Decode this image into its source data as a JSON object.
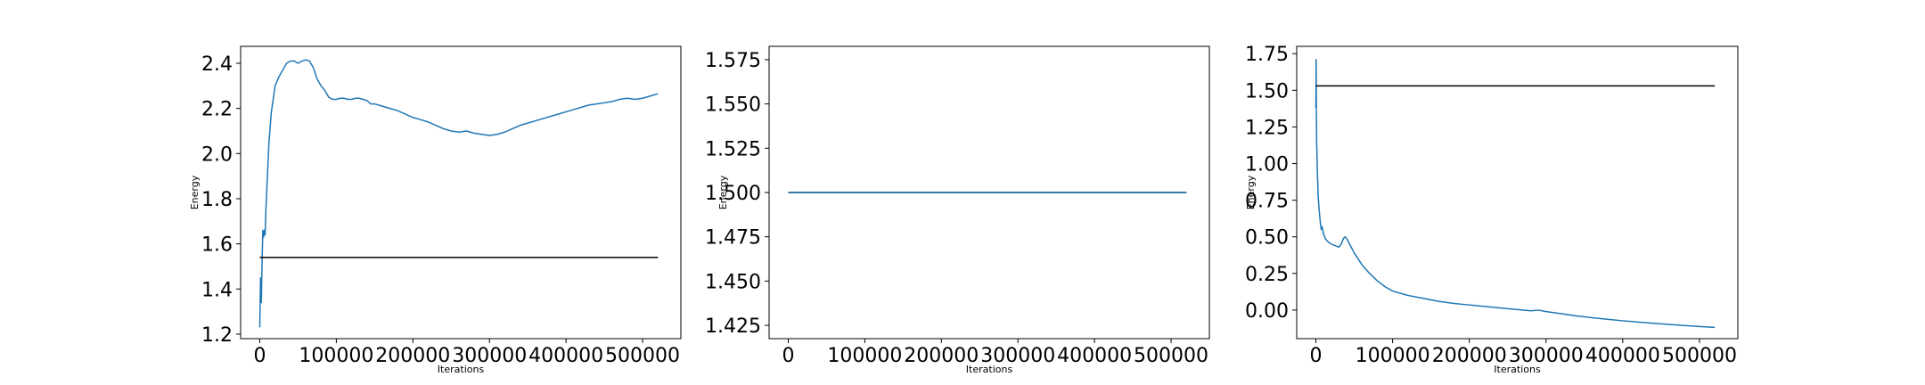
{
  "chart_data": [
    {
      "type": "line",
      "xlabel": "Iterations",
      "ylabel": "Energy",
      "xlim": [
        -25000,
        550000
      ],
      "ylim": [
        1.18,
        2.475
      ],
      "xticks": [
        0,
        100000,
        200000,
        300000,
        400000,
        500000
      ],
      "xtick_labels": [
        "0",
        "100000",
        "200000",
        "300000",
        "400000",
        "500000"
      ],
      "yticks": [
        1.2,
        1.4,
        1.6,
        1.8,
        2.0,
        2.2,
        2.4
      ],
      "ytick_labels": [
        "1.2",
        "1.4",
        "1.6",
        "1.8",
        "2.0",
        "2.2",
        "2.4"
      ],
      "grid": false,
      "series": [
        {
          "color": "#1f77b4",
          "x": [
            0,
            1000,
            2000,
            3000,
            4000,
            5000,
            6000,
            7000,
            8000,
            10000,
            12000,
            15000,
            20000,
            25000,
            30000,
            35000,
            40000,
            45000,
            50000,
            55000,
            60000,
            65000,
            70000,
            75000,
            80000,
            85000,
            90000,
            95000,
            100000,
            105000,
            110000,
            115000,
            120000,
            125000,
            130000,
            135000,
            140000,
            145000,
            150000,
            160000,
            170000,
            180000,
            190000,
            200000,
            210000,
            220000,
            230000,
            240000,
            250000,
            260000,
            270000,
            280000,
            290000,
            300000,
            310000,
            320000,
            330000,
            340000,
            350000,
            360000,
            370000,
            380000,
            390000,
            400000,
            410000,
            420000,
            430000,
            440000,
            450000,
            460000,
            470000,
            480000,
            490000,
            500000,
            510000,
            520000
          ],
          "y": [
            1.23,
            1.45,
            1.34,
            1.52,
            1.66,
            1.63,
            1.66,
            1.64,
            1.75,
            1.9,
            2.05,
            2.18,
            2.3,
            2.34,
            2.37,
            2.4,
            2.41,
            2.41,
            2.4,
            2.41,
            2.415,
            2.41,
            2.38,
            2.33,
            2.3,
            2.28,
            2.25,
            2.24,
            2.24,
            2.245,
            2.245,
            2.24,
            2.24,
            2.245,
            2.245,
            2.24,
            2.235,
            2.22,
            2.22,
            2.21,
            2.2,
            2.19,
            2.175,
            2.16,
            2.15,
            2.14,
            2.125,
            2.11,
            2.1,
            2.095,
            2.1,
            2.09,
            2.085,
            2.08,
            2.085,
            2.095,
            2.11,
            2.125,
            2.135,
            2.145,
            2.155,
            2.165,
            2.175,
            2.185,
            2.195,
            2.205,
            2.215,
            2.22,
            2.225,
            2.23,
            2.24,
            2.245,
            2.24,
            2.245,
            2.255,
            2.265
          ]
        },
        {
          "color": "#000000",
          "x": [
            0,
            520000
          ],
          "y": [
            1.54,
            1.54
          ]
        }
      ]
    },
    {
      "type": "line",
      "xlabel": "Iterations",
      "ylabel": "Energy",
      "xlim": [
        -25000,
        550000
      ],
      "ylim": [
        1.4175,
        1.5825
      ],
      "xticks": [
        0,
        100000,
        200000,
        300000,
        400000,
        500000
      ],
      "xtick_labels": [
        "0",
        "100000",
        "200000",
        "300000",
        "400000",
        "500000"
      ],
      "yticks": [
        1.425,
        1.45,
        1.475,
        1.5,
        1.525,
        1.55,
        1.575
      ],
      "ytick_labels": [
        "1.425",
        "1.450",
        "1.475",
        "1.500",
        "1.525",
        "1.550",
        "1.575"
      ],
      "grid": false,
      "series": [
        {
          "color": "#000000",
          "x": [
            0,
            520000
          ],
          "y": [
            1.5,
            1.5
          ]
        },
        {
          "color": "#1f77b4",
          "x": [
            0,
            520000
          ],
          "y": [
            1.5,
            1.5
          ]
        }
      ]
    },
    {
      "type": "line",
      "xlabel": "Iterations",
      "ylabel": "Energy",
      "xlim": [
        -25000,
        550000
      ],
      "ylim": [
        -0.195,
        1.8
      ],
      "xticks": [
        0,
        100000,
        200000,
        300000,
        400000,
        500000
      ],
      "xtick_labels": [
        "0",
        "100000",
        "200000",
        "300000",
        "400000",
        "500000"
      ],
      "yticks": [
        0.0,
        0.25,
        0.5,
        0.75,
        1.0,
        1.25,
        1.5,
        1.75
      ],
      "ytick_labels": [
        "0.00",
        "0.25",
        "0.50",
        "0.75",
        "1.00",
        "1.25",
        "1.50",
        "1.75"
      ],
      "grid": false,
      "series": [
        {
          "color": "#1f77b4",
          "x": [
            0,
            300,
            600,
            1000,
            1500,
            2000,
            3000,
            4000,
            5000,
            6000,
            7000,
            8000,
            10000,
            12000,
            15000,
            20000,
            25000,
            30000,
            33000,
            36000,
            38000,
            40000,
            45000,
            50000,
            60000,
            70000,
            80000,
            90000,
            100000,
            120000,
            140000,
            160000,
            180000,
            200000,
            220000,
            240000,
            260000,
            280000,
            290000,
            300000,
            320000,
            340000,
            360000,
            380000,
            400000,
            420000,
            440000,
            460000,
            480000,
            500000,
            520000
          ],
          "y": [
            1.38,
            1.71,
            1.4,
            1.15,
            1.05,
            0.93,
            0.78,
            0.7,
            0.64,
            0.59,
            0.55,
            0.57,
            0.52,
            0.49,
            0.47,
            0.45,
            0.44,
            0.43,
            0.45,
            0.49,
            0.5,
            0.49,
            0.44,
            0.39,
            0.31,
            0.25,
            0.2,
            0.16,
            0.13,
            0.1,
            0.08,
            0.06,
            0.045,
            0.035,
            0.025,
            0.015,
            0.005,
            -0.005,
            0.0,
            -0.01,
            -0.025,
            -0.04,
            -0.052,
            -0.063,
            -0.073,
            -0.082,
            -0.09,
            -0.098,
            -0.105,
            -0.112,
            -0.118
          ]
        },
        {
          "color": "#000000",
          "x": [
            0,
            520000
          ],
          "y": [
            1.53,
            1.53
          ]
        }
      ]
    }
  ]
}
